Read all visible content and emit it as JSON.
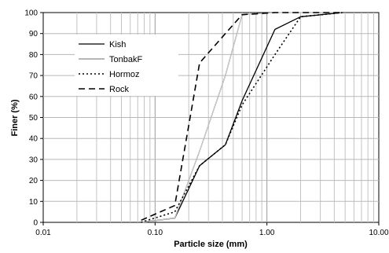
{
  "chart_data": {
    "type": "line",
    "title": "",
    "xlabel": "Particle size (mm)",
    "ylabel": "Finer (%)",
    "x_scale": "log",
    "xlim": [
      0.01,
      10
    ],
    "ylim": [
      0,
      100
    ],
    "grid": true,
    "legend_position": "top-left",
    "x_ticks": [
      "0.01",
      "0.10",
      "1.00",
      "10.00"
    ],
    "y_ticks": [
      "0",
      "10",
      "20",
      "30",
      "40",
      "50",
      "60",
      "70",
      "80",
      "90",
      "100"
    ],
    "series": [
      {
        "name": "Kish",
        "style": "solid",
        "points": [
          [
            0.075,
            0
          ],
          [
            0.15,
            2
          ],
          [
            0.25,
            27
          ],
          [
            0.425,
            37
          ],
          [
            0.6,
            58
          ],
          [
            1.18,
            92
          ],
          [
            2.0,
            98
          ],
          [
            4.75,
            100
          ]
        ]
      },
      {
        "name": "TonbakF",
        "style": "gray",
        "points": [
          [
            0.075,
            0
          ],
          [
            0.15,
            2
          ],
          [
            0.25,
            34
          ],
          [
            0.425,
            70
          ],
          [
            0.6,
            99
          ],
          [
            1.18,
            100
          ],
          [
            2.0,
            100
          ],
          [
            4.75,
            100
          ]
        ]
      },
      {
        "name": "Hormoz",
        "style": "dotted",
        "points": [
          [
            0.075,
            0
          ],
          [
            0.15,
            5
          ],
          [
            0.25,
            27
          ],
          [
            0.425,
            37
          ],
          [
            0.6,
            56
          ],
          [
            1.18,
            80
          ],
          [
            2.0,
            98
          ],
          [
            4.75,
            100
          ]
        ]
      },
      {
        "name": "Rock",
        "style": "dashed",
        "points": [
          [
            0.075,
            1
          ],
          [
            0.15,
            8
          ],
          [
            0.25,
            76
          ],
          [
            0.425,
            90
          ],
          [
            0.6,
            99
          ],
          [
            1.18,
            100
          ],
          [
            2.0,
            100
          ],
          [
            4.75,
            100
          ]
        ]
      }
    ]
  }
}
